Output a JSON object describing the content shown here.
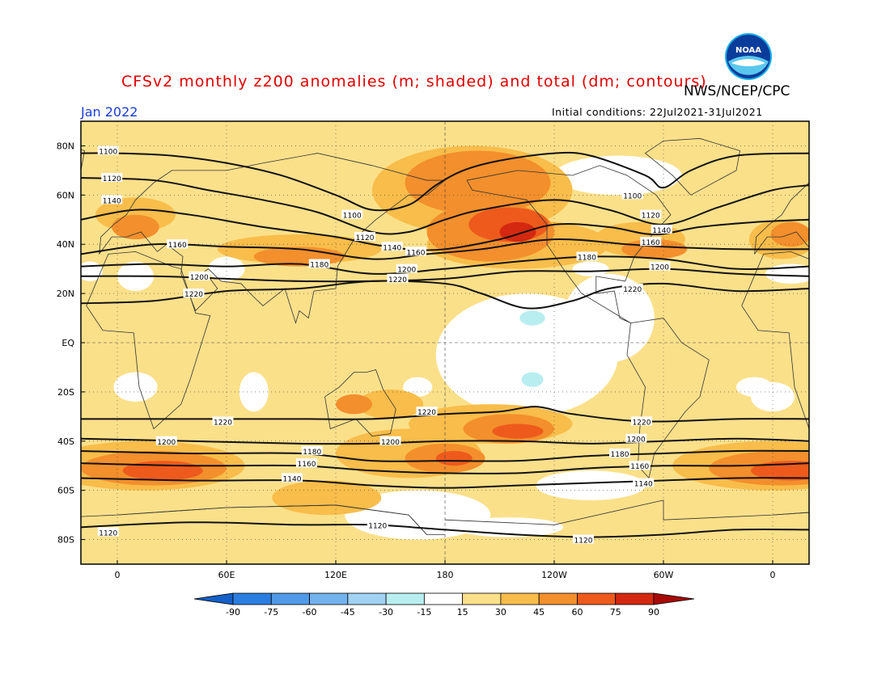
{
  "header": {
    "title": "CFSv2 monthly z200 anomalies (m; shaded) and total (dm; contours)",
    "org": "NWS/NCEP/CPC",
    "month": "Jan 2022",
    "initial_conditions": "Initial conditions: 22Jul2021-31Jul2021",
    "logo_text": "NOAA"
  },
  "axes": {
    "lat_labels": [
      "80N",
      "60N",
      "40N",
      "20N",
      "EQ",
      "20S",
      "40S",
      "60S",
      "80S"
    ],
    "lat_values": [
      80,
      60,
      40,
      20,
      0,
      -20,
      -40,
      -60,
      -80
    ],
    "lon_labels": [
      "0",
      "60E",
      "120E",
      "180",
      "120W",
      "60W",
      "0"
    ],
    "lon_values": [
      0,
      60,
      120,
      180,
      240,
      300,
      360
    ]
  },
  "colorbar": {
    "ticks": [
      "-90",
      "-75",
      "-60",
      "-45",
      "-30",
      "-15",
      "15",
      "30",
      "45",
      "60",
      "75",
      "90"
    ],
    "colors": [
      "#1460c8",
      "#2a7ee0",
      "#4f9ae8",
      "#74b2ee",
      "#a0d2f4",
      "#b8eef0",
      "#ffffff",
      "#fbe08a",
      "#f8bd4a",
      "#f38f2c",
      "#ee5a1c",
      "#d42810",
      "#a80a08"
    ]
  },
  "contours": [
    {
      "label": "1100",
      "points": [
        [
          -20,
          77
        ],
        [
          0,
          77
        ],
        [
          30,
          76
        ],
        [
          60,
          73
        ],
        [
          90,
          68
        ],
        [
          120,
          60
        ],
        [
          140,
          54
        ],
        [
          160,
          56
        ],
        [
          175,
          64
        ],
        [
          190,
          70
        ],
        [
          210,
          74
        ],
        [
          240,
          77
        ],
        [
          260,
          76
        ],
        [
          290,
          68
        ],
        [
          300,
          63
        ],
        [
          315,
          70
        ],
        [
          340,
          76
        ],
        [
          380,
          77
        ]
      ],
      "labels_at": [
        [
          -5,
          78
        ],
        [
          129,
          52
        ],
        [
          283,
          60
        ]
      ]
    },
    {
      "label": "1120",
      "points": [
        [
          -20,
          67
        ],
        [
          20,
          66
        ],
        [
          50,
          62
        ],
        [
          80,
          58
        ],
        [
          110,
          53
        ],
        [
          140,
          45
        ],
        [
          160,
          45
        ],
        [
          180,
          50
        ],
        [
          200,
          54
        ],
        [
          240,
          58
        ],
        [
          270,
          54
        ],
        [
          300,
          48
        ],
        [
          330,
          55
        ],
        [
          360,
          62
        ],
        [
          380,
          64
        ]
      ],
      "labels_at": [
        [
          -3,
          67
        ],
        [
          136,
          43
        ],
        [
          293,
          52
        ]
      ]
    },
    {
      "label": "1140",
      "points": [
        [
          -20,
          50
        ],
        [
          10,
          54
        ],
        [
          40,
          52
        ],
        [
          80,
          47
        ],
        [
          120,
          43
        ],
        [
          140,
          40
        ],
        [
          160,
          38
        ],
        [
          180,
          38
        ],
        [
          210,
          42
        ],
        [
          240,
          48
        ],
        [
          270,
          47
        ],
        [
          295,
          44
        ],
        [
          320,
          47
        ],
        [
          350,
          49
        ],
        [
          380,
          50
        ]
      ],
      "labels_at": [
        [
          -3,
          58
        ],
        [
          151,
          39
        ],
        [
          299,
          46
        ]
      ]
    },
    {
      "label": "1160",
      "points": [
        [
          -20,
          36
        ],
        [
          20,
          40
        ],
        [
          60,
          39
        ],
        [
          100,
          38
        ],
        [
          140,
          34
        ],
        [
          170,
          36
        ],
        [
          200,
          38
        ],
        [
          240,
          42
        ],
        [
          280,
          40
        ],
        [
          300,
          39
        ],
        [
          340,
          38
        ],
        [
          380,
          38
        ]
      ],
      "labels_at": [
        [
          33,
          40
        ],
        [
          164,
          37
        ],
        [
          293,
          41
        ]
      ]
    },
    {
      "label": "1180",
      "points": [
        [
          -20,
          31
        ],
        [
          20,
          32
        ],
        [
          60,
          31
        ],
        [
          100,
          32
        ],
        [
          140,
          28
        ],
        [
          180,
          30
        ],
        [
          220,
          33
        ],
        [
          260,
          35
        ],
        [
          300,
          34
        ],
        [
          340,
          30
        ],
        [
          380,
          31
        ]
      ],
      "labels_at": [
        [
          111,
          32
        ],
        [
          258,
          35
        ]
      ]
    },
    {
      "label": "1200",
      "points": [
        [
          -20,
          27
        ],
        [
          20,
          27
        ],
        [
          60,
          26
        ],
        [
          100,
          25
        ],
        [
          140,
          25
        ],
        [
          180,
          26
        ],
        [
          220,
          29
        ],
        [
          260,
          29
        ],
        [
          300,
          30
        ],
        [
          340,
          28
        ],
        [
          380,
          27
        ]
      ],
      "labels_at": [
        [
          45,
          27
        ],
        [
          159,
          30
        ],
        [
          298,
          31
        ]
      ]
    },
    {
      "label": "1220",
      "points": [
        [
          -20,
          16
        ],
        [
          20,
          17
        ],
        [
          60,
          21
        ],
        [
          100,
          22
        ],
        [
          140,
          25
        ],
        [
          180,
          24
        ],
        [
          200,
          20
        ],
        [
          225,
          14
        ],
        [
          250,
          17
        ],
        [
          270,
          22
        ],
        [
          300,
          24
        ],
        [
          340,
          21
        ],
        [
          380,
          22
        ]
      ],
      "labels_at": [
        [
          42,
          20
        ],
        [
          154,
          26
        ],
        [
          283,
          22
        ]
      ]
    },
    {
      "label": "1220",
      "points": [
        [
          -20,
          -31
        ],
        [
          40,
          -31
        ],
        [
          100,
          -31
        ],
        [
          140,
          -31
        ],
        [
          180,
          -29
        ],
        [
          210,
          -28
        ],
        [
          230,
          -26
        ],
        [
          250,
          -29
        ],
        [
          290,
          -32
        ],
        [
          340,
          -31
        ],
        [
          380,
          -31
        ]
      ],
      "labels_at": [
        [
          58,
          -32
        ],
        [
          170,
          -28
        ],
        [
          288,
          -32
        ]
      ]
    },
    {
      "label": "1200",
      "points": [
        [
          -20,
          -39
        ],
        [
          40,
          -40
        ],
        [
          100,
          -41
        ],
        [
          140,
          -41
        ],
        [
          180,
          -40
        ],
        [
          220,
          -40
        ],
        [
          260,
          -41
        ],
        [
          300,
          -40
        ],
        [
          340,
          -39
        ],
        [
          380,
          -40
        ]
      ],
      "labels_at": [
        [
          27,
          -40
        ],
        [
          150,
          -40
        ],
        [
          285,
          -39
        ]
      ]
    },
    {
      "label": "1180",
      "points": [
        [
          -20,
          -44
        ],
        [
          40,
          -45
        ],
        [
          100,
          -45
        ],
        [
          140,
          -48
        ],
        [
          180,
          -48
        ],
        [
          220,
          -48
        ],
        [
          260,
          -46
        ],
        [
          300,
          -45
        ],
        [
          340,
          -44
        ],
        [
          380,
          -44
        ]
      ],
      "labels_at": [
        [
          107,
          -44
        ],
        [
          276,
          -45
        ]
      ]
    },
    {
      "label": "1160",
      "points": [
        [
          -20,
          -49
        ],
        [
          40,
          -50
        ],
        [
          100,
          -50
        ],
        [
          140,
          -52
        ],
        [
          180,
          -53
        ],
        [
          220,
          -53
        ],
        [
          260,
          -51
        ],
        [
          300,
          -50
        ],
        [
          340,
          -50
        ],
        [
          380,
          -49
        ]
      ],
      "labels_at": [
        [
          104,
          -49
        ],
        [
          287,
          -50
        ]
      ]
    },
    {
      "label": "1140",
      "points": [
        [
          -20,
          -55
        ],
        [
          40,
          -56
        ],
        [
          100,
          -56
        ],
        [
          140,
          -58
        ],
        [
          180,
          -59
        ],
        [
          220,
          -58
        ],
        [
          260,
          -57
        ],
        [
          300,
          -56
        ],
        [
          340,
          -55
        ],
        [
          380,
          -55
        ]
      ],
      "labels_at": [
        [
          96,
          -55
        ],
        [
          289,
          -57
        ]
      ]
    },
    {
      "label": "1120",
      "points": [
        [
          -20,
          -75
        ],
        [
          40,
          -73
        ],
        [
          100,
          -74
        ],
        [
          140,
          -74
        ],
        [
          180,
          -76
        ],
        [
          220,
          -78
        ],
        [
          260,
          -79
        ],
        [
          300,
          -78
        ],
        [
          340,
          -76
        ],
        [
          380,
          -76
        ]
      ],
      "labels_at": [
        [
          -5,
          -77
        ],
        [
          143,
          -74
        ],
        [
          256,
          -80
        ]
      ]
    }
  ],
  "anomaly_regions": [
    {
      "level": "30",
      "blobs": []
    },
    {
      "level": "45",
      "blobs": [
        [
          10,
          52,
          22,
          7
        ],
        [
          100,
          38,
          45,
          6
        ],
        [
          195,
          62,
          55,
          18
        ],
        [
          220,
          40,
          50,
          10
        ],
        [
          287,
          42,
          25,
          7
        ],
        [
          365,
          42,
          18,
          8
        ],
        [
          150,
          -25,
          18,
          6
        ],
        [
          205,
          -33,
          45,
          8
        ],
        [
          15,
          -50,
          55,
          10
        ],
        [
          360,
          -50,
          55,
          10
        ],
        [
          160,
          -45,
          40,
          10
        ],
        [
          115,
          -63,
          30,
          7
        ]
      ]
    },
    {
      "level": "60",
      "blobs": [
        [
          10,
          47,
          13,
          5
        ],
        [
          100,
          35,
          25,
          4
        ],
        [
          198,
          65,
          40,
          13
        ],
        [
          205,
          45,
          35,
          12
        ],
        [
          295,
          38,
          18,
          4
        ],
        [
          370,
          44,
          11,
          5
        ],
        [
          130,
          -25,
          10,
          4
        ],
        [
          215,
          -35,
          25,
          6
        ],
        [
          20,
          -51,
          40,
          7
        ],
        [
          365,
          -51,
          40,
          7
        ],
        [
          180,
          -47,
          22,
          6
        ]
      ]
    },
    {
      "level": "75",
      "blobs": [
        [
          215,
          48,
          22,
          7
        ],
        [
          25,
          -52,
          22,
          4
        ],
        [
          370,
          -52,
          22,
          4
        ],
        [
          185,
          -47,
          10,
          3
        ],
        [
          220,
          -36,
          14,
          3
        ]
      ]
    },
    {
      "level": "90",
      "blobs": [
        [
          220,
          45,
          10,
          4
        ]
      ]
    }
  ],
  "neutral_regions": [
    {
      "blobs": [
        [
          60,
          30,
          10,
          5
        ],
        [
          10,
          27,
          10,
          6
        ],
        [
          275,
          68,
          35,
          8
        ],
        [
          270,
          10,
          25,
          18
        ],
        [
          225,
          -5,
          50,
          25
        ],
        [
          10,
          -18,
          12,
          6
        ],
        [
          75,
          -20,
          8,
          8
        ],
        [
          360,
          -22,
          12,
          6
        ],
        [
          260,
          -58,
          30,
          6
        ],
        [
          165,
          -70,
          40,
          10
        ],
        [
          215,
          -75,
          30,
          4
        ],
        [
          165,
          -18,
          8,
          4
        ],
        [
          260,
          30,
          10,
          3
        ],
        [
          370,
          28,
          14,
          4
        ],
        [
          350,
          -18,
          10,
          4
        ],
        [
          -15,
          29,
          7,
          4
        ]
      ]
    }
  ],
  "negative_regions": [
    {
      "blobs": [
        [
          228,
          10,
          7,
          3
        ],
        [
          228,
          -15,
          6,
          3
        ]
      ]
    }
  ]
}
